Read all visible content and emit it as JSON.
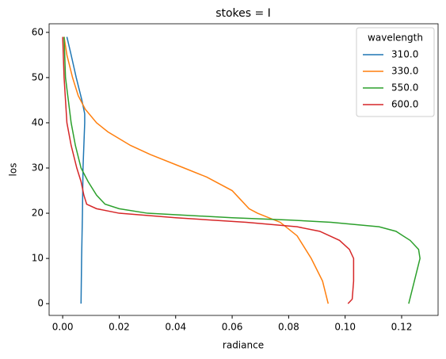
{
  "chart_data": {
    "type": "line",
    "title": "stokes = I",
    "xlabel": "radiance",
    "ylabel": "los",
    "xlim": [
      -0.0048,
      0.1329
    ],
    "ylim": [
      -2.6,
      61.9
    ],
    "xticks": [
      {
        "value": 0,
        "label": "0.00"
      },
      {
        "value": 0.02,
        "label": "0.02"
      },
      {
        "value": 0.04,
        "label": "0.04"
      },
      {
        "value": 0.06,
        "label": "0.06"
      },
      {
        "value": 0.08,
        "label": "0.08"
      },
      {
        "value": 0.1,
        "label": "0.10"
      },
      {
        "value": 0.12,
        "label": "0.12"
      }
    ],
    "yticks": [
      0,
      10,
      20,
      30,
      40,
      50,
      60
    ],
    "legend_title": "wavelength",
    "legend_position": "upper right",
    "series": [
      {
        "name": "310.0",
        "color": "#1f77b4",
        "x": [
          0.0065,
          0.0067,
          0.007,
          0.0072,
          0.0078,
          0.0078,
          0.0068,
          0.0048,
          0.003,
          0.0015
        ],
        "y": [
          0,
          10,
          20,
          30,
          40,
          42,
          45,
          50,
          55,
          59
        ]
      },
      {
        "name": "330.0",
        "color": "#ff7f0e",
        "x": [
          0.094,
          0.092,
          0.088,
          0.083,
          0.077,
          0.069,
          0.066,
          0.063,
          0.06,
          0.051,
          0.043,
          0.031,
          0.024,
          0.016,
          0.012,
          0.008,
          0.0055,
          0.0035,
          0.0015,
          0.0005
        ],
        "y": [
          0,
          5,
          10,
          15,
          18,
          20,
          21,
          23,
          25,
          28,
          30,
          33,
          35,
          38,
          40,
          43,
          46,
          50,
          55,
          59
        ]
      },
      {
        "name": "550.0",
        "color": "#2ca02c",
        "x": [
          0.1225,
          0.1245,
          0.1265,
          0.126,
          0.123,
          0.118,
          0.112,
          0.095,
          0.08,
          0.06,
          0.03,
          0.02,
          0.015,
          0.012,
          0.009,
          0.0065,
          0.0045,
          0.003,
          0.002,
          0.001,
          0.0005
        ],
        "y": [
          0,
          5,
          10,
          12,
          14,
          16,
          17,
          18,
          18.5,
          19,
          20,
          21,
          22,
          24,
          27,
          30,
          35,
          40,
          45,
          50,
          59
        ]
      },
      {
        "name": "600.0",
        "color": "#d62728",
        "x": [
          0.101,
          0.1025,
          0.103,
          0.103,
          0.1015,
          0.098,
          0.091,
          0.083,
          0.065,
          0.04,
          0.02,
          0.012,
          0.0085,
          0.0075,
          0.0065,
          0.005,
          0.003,
          0.0015,
          0.0005,
          0
        ],
        "y": [
          0,
          1,
          5,
          10,
          12,
          14,
          16,
          17,
          18,
          19,
          20,
          21,
          22,
          24,
          27,
          30,
          35,
          40,
          50,
          59
        ]
      }
    ]
  }
}
